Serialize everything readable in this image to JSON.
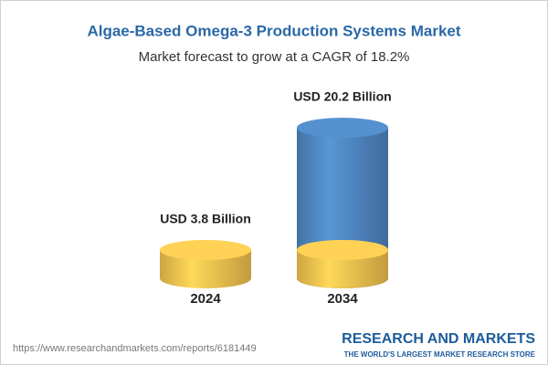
{
  "chart_data": {
    "type": "bar",
    "title": "Algae-Based Omega-3 Production Systems Market",
    "subtitle": "Market forecast to grow at a CAGR of 18.2%",
    "categories": [
      "2024",
      "2034"
    ],
    "values": [
      3.8,
      20.2
    ],
    "value_labels": [
      "USD 3.8 Billion",
      "USD 20.2 Billion"
    ],
    "colors": [
      "#f2c24f",
      "#4f86c0"
    ]
  },
  "footer": {
    "url": "https://www.researchandmarkets.com/reports/6181449",
    "brand": "RESEARCH AND MARKETS",
    "tagline": "THE WORLD'S LARGEST MARKET RESEARCH STORE"
  }
}
